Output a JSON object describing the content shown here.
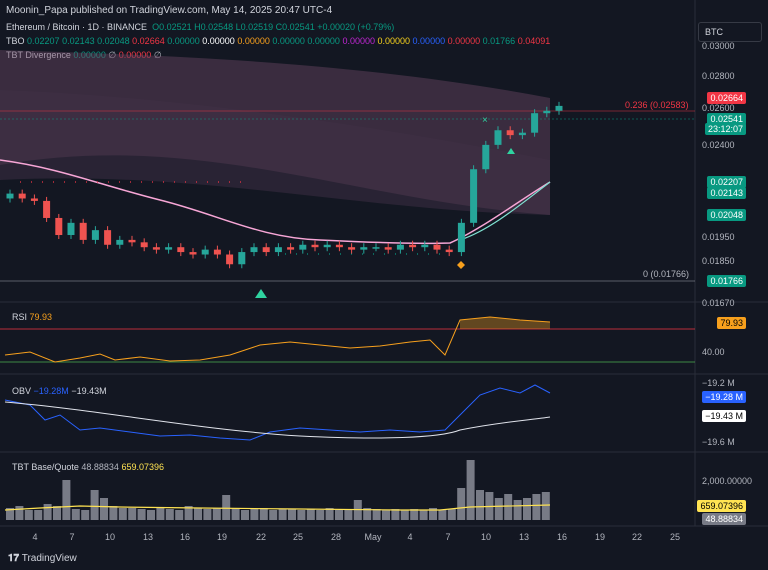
{
  "header": {
    "publisher": "Moonin_Papa published on TradingView.com, May 14, 2025 20:47 UTC-4"
  },
  "symbol": {
    "name": "Ethereum / Bitcoin · 1D · BINANCE",
    "ohlc": "O0.02521 H0.02548 L0.02519 C0.02541 +0.00020 (+0.79%)",
    "tbo_label": "TBO",
    "tbo_values": [
      "0.02207",
      "0.02143",
      "0.02048",
      "0.02664",
      "0.00000",
      "0.00000",
      "0.00000",
      "0.00000",
      "0.00000",
      "0.00000",
      "0.00000",
      "0.00000",
      "0.00000",
      "0.01766",
      "0.04091"
    ],
    "tbt_label": "TBT Divergence",
    "tbt_values": [
      "0.00000",
      "∅",
      "0.00000",
      "∅"
    ]
  },
  "currency_button": "BTC",
  "price_axis": {
    "ticks": [
      "0.03000",
      "0.02800",
      "0.02600",
      "0.02400",
      "0.01950",
      "0.01850",
      "0.01670"
    ],
    "labels": [
      {
        "text": "0.02664",
        "color": "#f23645"
      },
      {
        "text": "0.02541",
        "color": "#089981"
      },
      {
        "text": "23:12:07",
        "color": "#089981"
      },
      {
        "text": "0.02207",
        "color": "#089981"
      },
      {
        "text": "0.02143",
        "color": "#089981"
      },
      {
        "text": "0.02048",
        "color": "#089981"
      },
      {
        "text": "0.01766",
        "color": "#089981"
      }
    ],
    "fib_top": "0.236 (0.02583)",
    "fib_bottom": "0 (0.01766)"
  },
  "rsi": {
    "label": "RSI",
    "value": "79.93",
    "level": "40.00"
  },
  "obv": {
    "label": "OBV",
    "v1": "−19.28M",
    "v2": "−19.43M",
    "ticks": [
      "−19.2 M",
      "−19.6 M"
    ],
    "axis1": "−19.28 M",
    "axis2": "−19.43 M"
  },
  "tbt_bq": {
    "label": "TBT Base/Quote",
    "v1": "48.88834",
    "v2": "659.07396",
    "tick": "2,000.00000"
  },
  "x_axis": [
    "4",
    "7",
    "10",
    "13",
    "16",
    "19",
    "22",
    "25",
    "28",
    "May",
    "4",
    "7",
    "10",
    "13",
    "16",
    "19",
    "22",
    "25"
  ],
  "footer": {
    "logo": "TradingView"
  },
  "chart_data": {
    "type": "candlestick",
    "close": [
      0.0218,
      0.0216,
      0.0215,
      0.0208,
      0.0201,
      0.0206,
      0.0199,
      0.0203,
      0.0197,
      0.0199,
      0.0198,
      0.0196,
      0.0195,
      0.0196,
      0.0194,
      0.0193,
      0.0195,
      0.0193,
      0.0189,
      0.0194,
      0.0196,
      0.0194,
      0.0196,
      0.0195,
      0.0197,
      0.0196,
      0.0197,
      0.0196,
      0.0195,
      0.0196,
      0.0196,
      0.0195,
      0.0197,
      0.0196,
      0.0197,
      0.0195,
      0.0194,
      0.0206,
      0.0228,
      0.0238,
      0.0244,
      0.0242,
      0.0243,
      0.0251,
      0.0252,
      0.0254
    ],
    "open": [
      0.0216,
      0.0218,
      0.0216,
      0.0215,
      0.0208,
      0.0201,
      0.0206,
      0.0199,
      0.0203,
      0.0197,
      0.0199,
      0.0198,
      0.0196,
      0.0195,
      0.0196,
      0.0194,
      0.0193,
      0.0195,
      0.0193,
      0.0189,
      0.0194,
      0.0196,
      0.0194,
      0.0196,
      0.0195,
      0.0197,
      0.0196,
      0.0197,
      0.0196,
      0.0195,
      0.0196,
      0.0196,
      0.0195,
      0.0197,
      0.0196,
      0.0197,
      0.0195,
      0.0194,
      0.0206,
      0.0228,
      0.0238,
      0.0244,
      0.0242,
      0.0243,
      0.0251,
      0.0252
    ]
  }
}
